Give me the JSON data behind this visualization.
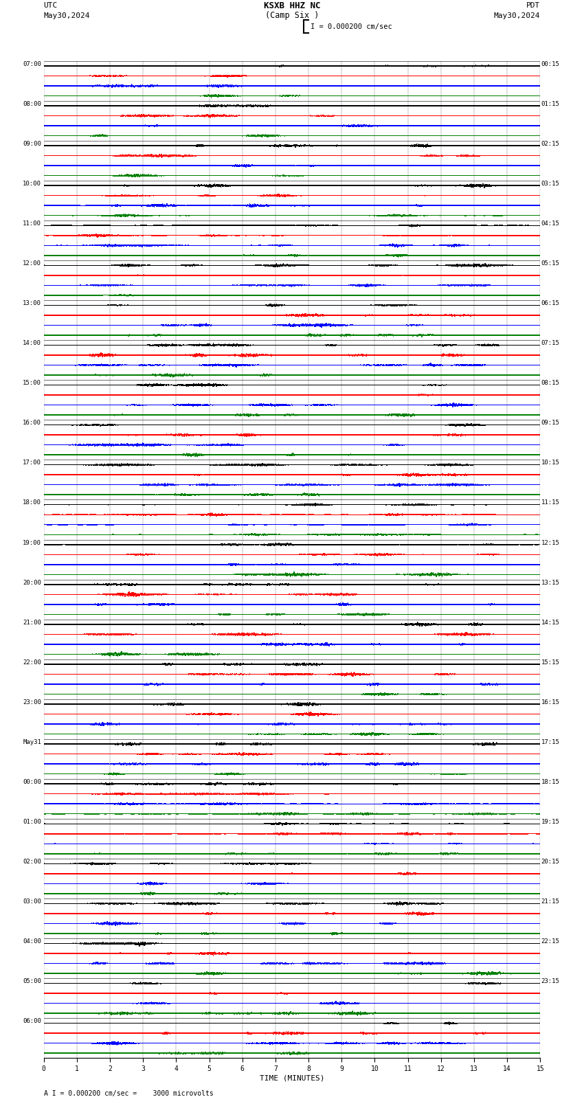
{
  "title_line1": "KSXB HHZ NC",
  "title_line2": "(Camp Six )",
  "scale_text": "I = 0.000200 cm/sec",
  "left_label": "UTC",
  "left_date": "May30,2024",
  "right_label": "PDT",
  "right_date": "May30,2024",
  "bottom_xlabel": "TIME (MINUTES)",
  "bottom_note": "A I = 0.000200 cm/sec =    3000 microvolts",
  "xmin": 0,
  "xmax": 15,
  "xticks": [
    0,
    1,
    2,
    3,
    4,
    5,
    6,
    7,
    8,
    9,
    10,
    11,
    12,
    13,
    14,
    15
  ],
  "num_hour_rows": 24,
  "traces_per_hour": 4,
  "colors": [
    "black",
    "red",
    "blue",
    "green"
  ],
  "bg_color": "white",
  "utc_hour_labels": [
    "07:00",
    "08:00",
    "09:00",
    "10:00",
    "11:00",
    "12:00",
    "13:00",
    "14:00",
    "15:00",
    "16:00",
    "17:00",
    "18:00",
    "19:00",
    "20:00",
    "21:00",
    "22:00",
    "23:00",
    "May31",
    "00:00",
    "01:00",
    "02:00",
    "03:00",
    "04:00",
    "05:00",
    "06:00"
  ],
  "pdt_hour_labels": [
    "00:15",
    "01:15",
    "02:15",
    "03:15",
    "04:15",
    "05:15",
    "06:15",
    "07:15",
    "08:15",
    "09:15",
    "10:15",
    "11:15",
    "12:15",
    "13:15",
    "14:15",
    "15:15",
    "16:15",
    "17:15",
    "18:15",
    "19:15",
    "20:15",
    "21:15",
    "22:15",
    "23:15",
    ""
  ]
}
